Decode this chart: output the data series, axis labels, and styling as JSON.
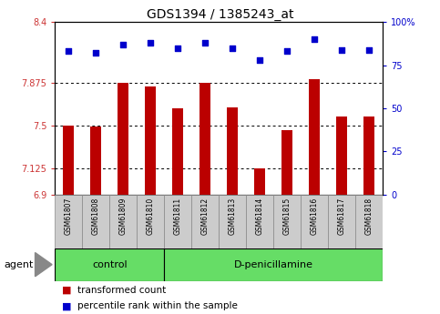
{
  "title": "GDS1394 / 1385243_at",
  "samples": [
    "GSM61807",
    "GSM61808",
    "GSM61809",
    "GSM61810",
    "GSM61811",
    "GSM61812",
    "GSM61813",
    "GSM61814",
    "GSM61815",
    "GSM61816",
    "GSM61817",
    "GSM61818"
  ],
  "bar_values": [
    7.5,
    7.49,
    7.875,
    7.84,
    7.65,
    7.875,
    7.66,
    7.13,
    7.46,
    7.9,
    7.58,
    7.58
  ],
  "percentile_values": [
    83,
    82,
    87,
    88,
    85,
    88,
    85,
    78,
    83,
    90,
    84,
    84
  ],
  "ylim_left": [
    6.9,
    8.4
  ],
  "ylim_right": [
    0,
    100
  ],
  "yticks_left": [
    6.9,
    7.125,
    7.5,
    7.875,
    8.4
  ],
  "yticks_right": [
    0,
    25,
    50,
    75,
    100
  ],
  "ytick_labels_left": [
    "6.9",
    "7.125",
    "7.5",
    "7.875",
    "8.4"
  ],
  "ytick_labels_right": [
    "0",
    "25",
    "50",
    "75",
    "100%"
  ],
  "hlines": [
    7.125,
    7.5,
    7.875
  ],
  "bar_color": "#BB0000",
  "scatter_color": "#0000CC",
  "n_control": 4,
  "n_treatment": 8,
  "control_label": "control",
  "treatment_label": "D-penicillamine",
  "agent_label": "agent",
  "legend_bar_label": "transformed count",
  "legend_scatter_label": "percentile rank within the sample",
  "bar_width": 0.4,
  "tick_fontsize": 7,
  "label_fontsize": 8,
  "title_fontsize": 10
}
